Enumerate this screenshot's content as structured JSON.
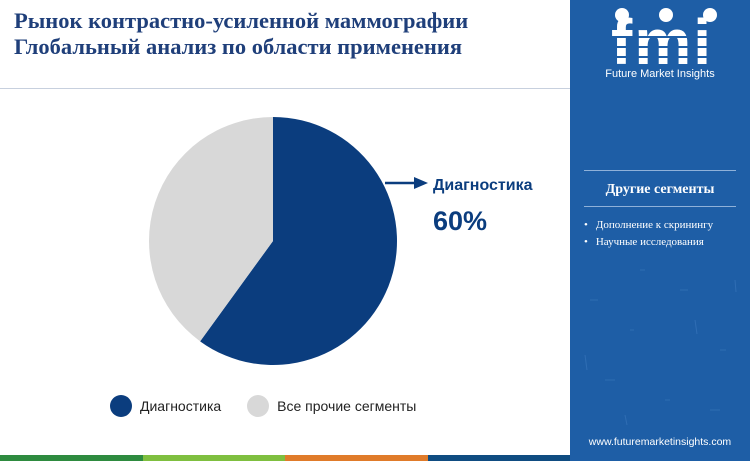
{
  "title_lines": [
    "Рынок контрастно-усиленной маммографии",
    "Глобальный анализ по области применения"
  ],
  "chart_data": {
    "type": "pie",
    "slices": [
      {
        "label": "Диагностика",
        "value": 60,
        "color": "#0b3d7e"
      },
      {
        "label": "Все прочие сегменты",
        "value": 40,
        "color": "#d8d8d8"
      }
    ],
    "callout": {
      "label": "Диагностика",
      "value_text": "60%"
    },
    "legend": [
      {
        "label": "Диагностика",
        "color": "#0b3d7e"
      },
      {
        "label": "Все прочие сегменты",
        "color": "#d8d8d8"
      }
    ],
    "legend_position": "bottom"
  },
  "sidebar": {
    "logo_text": "fmi",
    "brand_name": "Future Market Insights",
    "other_segments_title": "Другие сегменты",
    "other_segments": [
      "Дополнение к скринингу",
      "Научные исследования"
    ],
    "website": "www.futuremarketinsights.com"
  },
  "colors": {
    "title": "#1f3f7a",
    "sidebar_bg": "#1e5ea6",
    "bottom_bar": [
      "#2e8b3f",
      "#7fbf3f",
      "#e07b2a",
      "#0f4c81"
    ]
  }
}
